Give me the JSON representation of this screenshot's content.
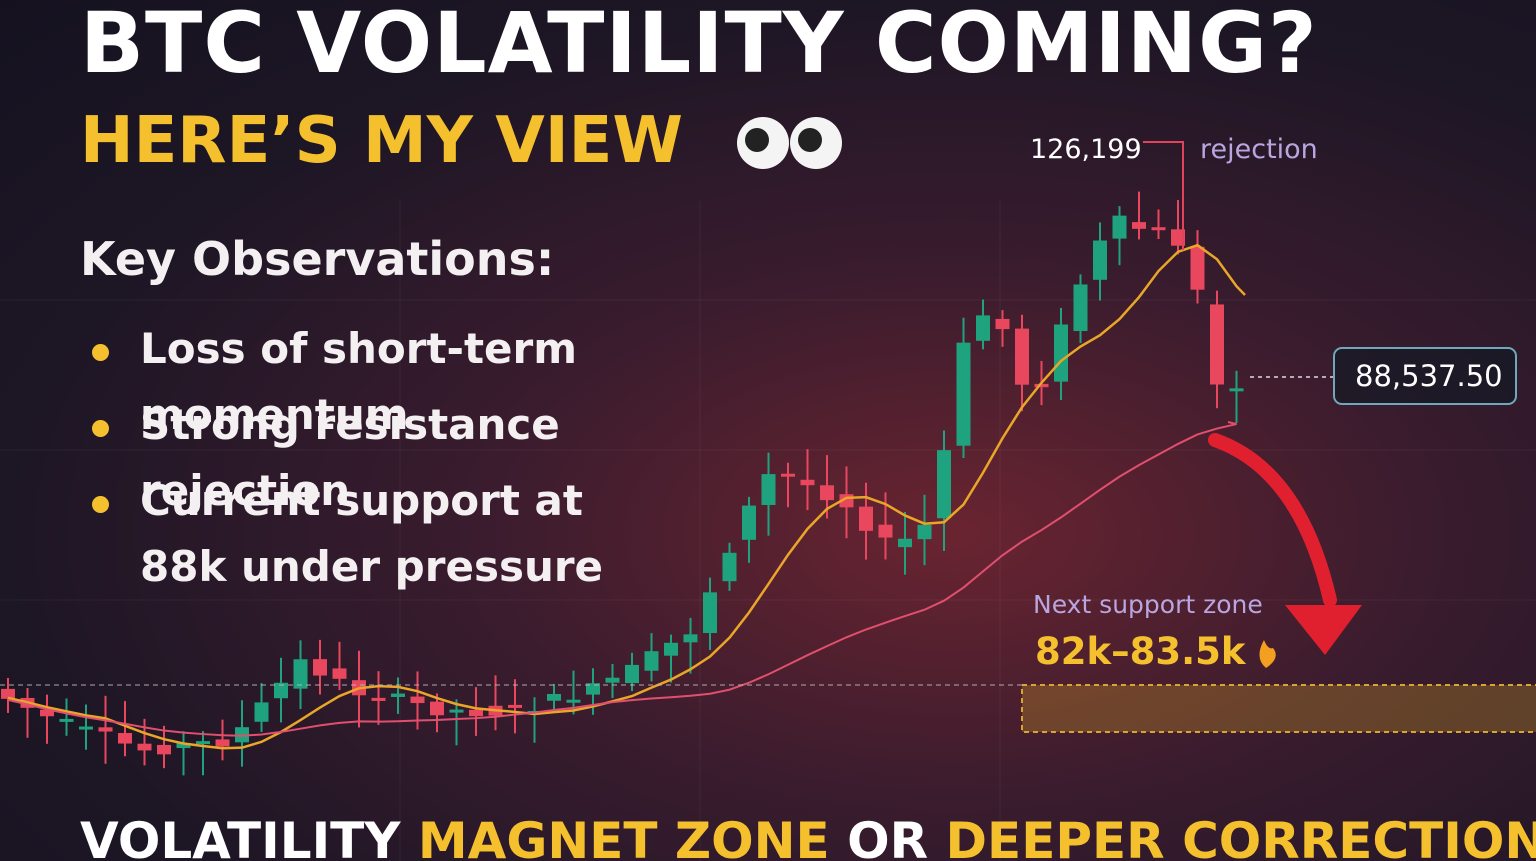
{
  "header": {
    "title": "BTC VOLATILITY COMING?",
    "subtitle": "HERE’S MY VIEW"
  },
  "observations": {
    "heading": "Key Observations:",
    "items": [
      "Loss of short-term momentum",
      "Strong resistance rejection",
      "Current support at 88k under pressure"
    ]
  },
  "chart": {
    "peak_label": "126,199",
    "peak_note": "rejection",
    "price_tag": "88,537.50",
    "zone_caption": "Next support zone",
    "zone_range": "82k–83.5k"
  },
  "footer": {
    "parts": [
      "VOLATILITY",
      "MAGNET ZONE",
      "OR",
      "DEEPER CORRECTION?"
    ]
  }
}
